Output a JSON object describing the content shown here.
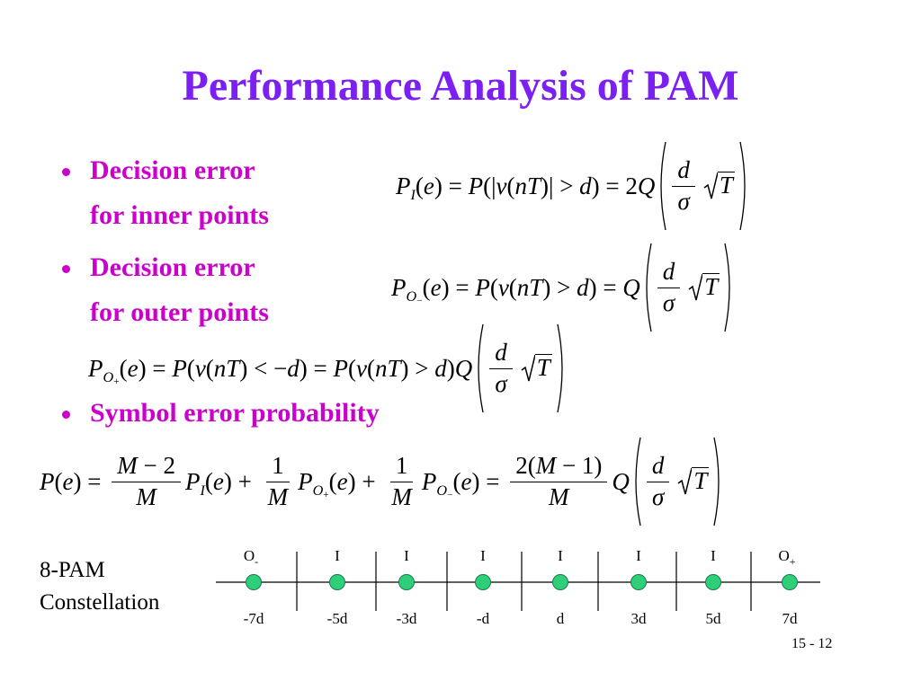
{
  "title": "Performance Analysis of PAM",
  "bullets": [
    {
      "lines": [
        "Decision error",
        "for inner points"
      ]
    },
    {
      "lines": [
        "Decision error",
        "for outer points"
      ]
    },
    {
      "lines": [
        "Symbol error probability"
      ]
    }
  ],
  "equations": [
    {
      "tokens": [
        {
          "base": "P",
          "sub": "I"
        },
        "(e) = P(|v(nT)| > d) = 2Q",
        {
          "paren": [
            {
              "num": "d",
              "den": "σ"
            },
            {
              "sqrt": "T"
            }
          ]
        }
      ]
    },
    {
      "tokens": [
        {
          "base": "P",
          "sub": "O",
          "subsub": "−"
        },
        "(e) = P(v(nT) > d) = Q",
        {
          "paren": [
            {
              "num": "d",
              "den": "σ"
            },
            {
              "sqrt": "T"
            }
          ]
        }
      ]
    },
    {
      "tokens": [
        {
          "base": "P",
          "sub": "O",
          "subsub": "+"
        },
        "(e) = P(v(nT) < −d) = P(v(nT) > d)Q",
        {
          "paren": [
            {
              "num": "d",
              "den": "σ"
            },
            {
              "sqrt": "T"
            }
          ]
        }
      ]
    },
    {
      "tokens": [
        "P(e) = ",
        {
          "num": "M − 2",
          "den": "M"
        },
        {
          "base": "P",
          "sub": "I"
        },
        "(e) + ",
        {
          "num": "1",
          "den": "M"
        },
        {
          "base": "P",
          "sub": "O",
          "subsub": "+"
        },
        "(e) + ",
        {
          "num": "1",
          "den": "M"
        },
        {
          "base": "P",
          "sub": "O",
          "subsub": "−"
        },
        "(e) = ",
        {
          "num": "2(M − 1)",
          "den": "M"
        },
        "Q",
        {
          "paren": [
            {
              "num": "d",
              "den": "σ"
            },
            {
              "sqrt": "T"
            }
          ]
        }
      ]
    }
  ],
  "constellation": {
    "label_lines": [
      "8-PAM",
      "Constellation"
    ],
    "top_labels": [
      {
        "base": "O",
        "sub": "-"
      },
      "I",
      "I",
      "I",
      "I",
      "I",
      "I",
      {
        "base": "O",
        "sub": "+"
      }
    ],
    "bottom_labels": [
      "-7d",
      "-5d",
      "-3d",
      "-d",
      "d",
      "3d",
      "5d",
      "7d"
    ]
  },
  "page_number": "15 - 12"
}
